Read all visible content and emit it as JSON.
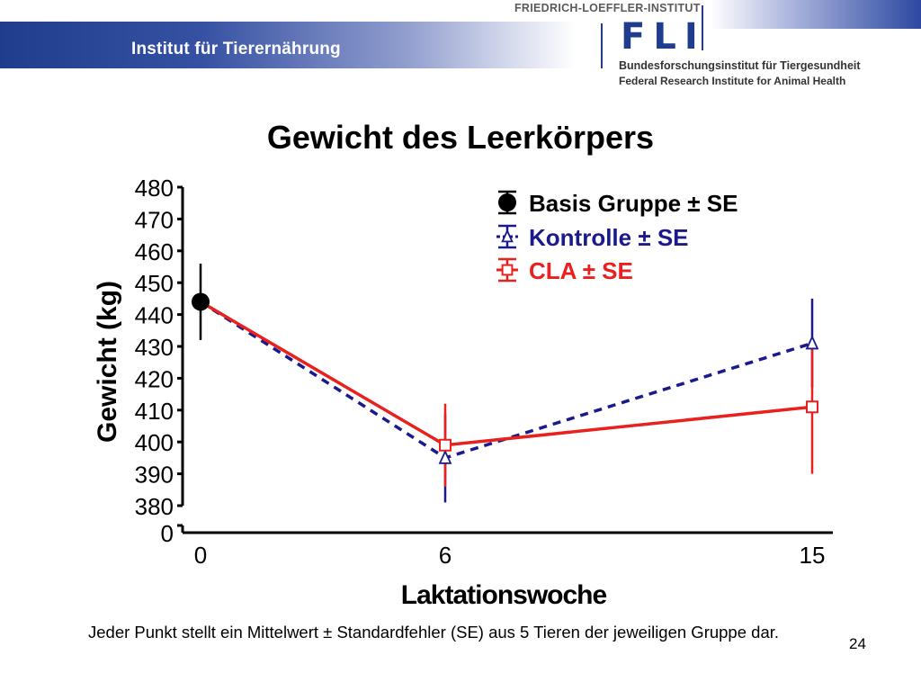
{
  "header": {
    "institute_label": "Institut für Tierernährung",
    "org_name": "FRIEDRICH-LOEFFLER-INSTITUT",
    "logo_text": "FLI",
    "org_subtitle_de": "Bundesforschungsinstitut für Tiergesundheit",
    "org_subtitle_en": "Federal Research Institute for Animal Health"
  },
  "footnote": "Jeder Punkt stellt ein Mittelwert ± Standardfehler (SE) aus 5 Tieren der jeweiligen Gruppe dar.",
  "slide_number": "24",
  "colors": {
    "basis": "#000000",
    "kontrolle": "#1a1a8c",
    "cla": "#e8201e",
    "brand": "#1f3d8c"
  },
  "chart_data": {
    "type": "line",
    "title": "Gewicht des Leerkörpers",
    "xlabel": "Laktationswoche",
    "ylabel": "Gewicht (kg)",
    "x_ticks": [
      0,
      6,
      15
    ],
    "y_ticks": [
      380,
      390,
      400,
      410,
      420,
      430,
      440,
      450,
      460,
      470,
      480
    ],
    "y_break_tick": 0,
    "ylim": [
      380,
      480
    ],
    "axis_break": true,
    "legend_position": "top-right",
    "series": [
      {
        "name": "Basis Gruppe  ± SE",
        "marker": "filled-circle",
        "line": "none",
        "x": [
          0
        ],
        "y": [
          444
        ],
        "se": [
          12
        ]
      },
      {
        "name": "Kontrolle ± SE",
        "marker": "open-triangle",
        "line": "dashed",
        "x": [
          0,
          6,
          15
        ],
        "y": [
          444,
          395,
          431
        ],
        "se": [
          0,
          14,
          14
        ]
      },
      {
        "name": "CLA ± SE",
        "marker": "open-square",
        "line": "solid",
        "x": [
          0,
          6,
          15
        ],
        "y": [
          444,
          399,
          411
        ],
        "se": [
          0,
          13,
          21
        ]
      }
    ]
  }
}
